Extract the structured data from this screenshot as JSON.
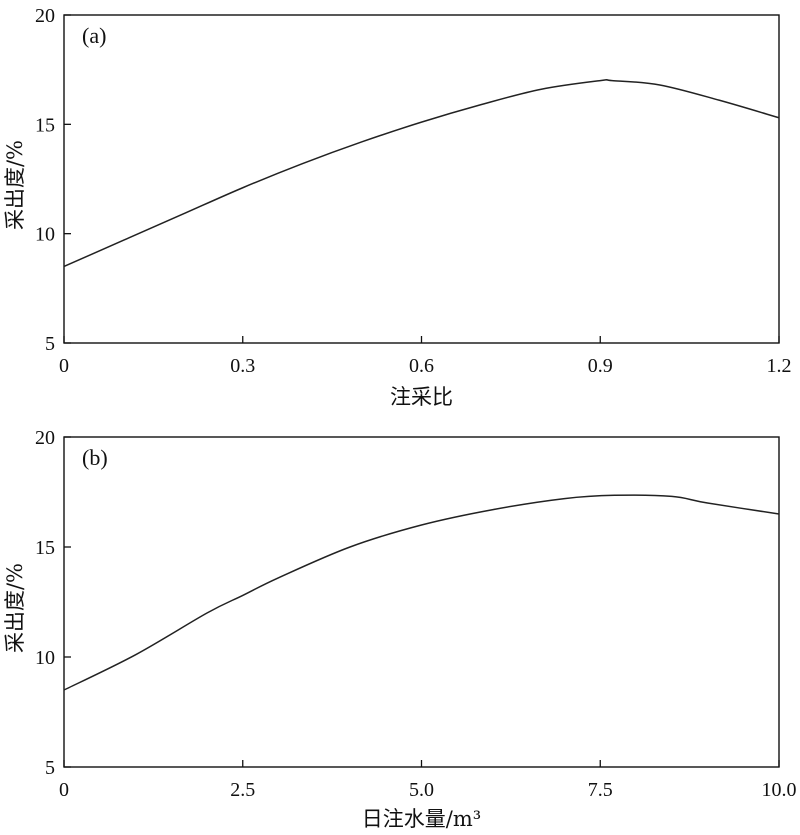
{
  "chart_data": [
    {
      "type": "line",
      "panel_label": "(a)",
      "xlabel": "注采比",
      "ylabel": "采出度/%",
      "xlim": [
        0,
        1.2
      ],
      "ylim": [
        5,
        20
      ],
      "xticks": [
        0,
        0.3,
        0.6,
        0.9,
        1.2
      ],
      "xtick_labels": [
        "0",
        "0.3",
        "0.6",
        "0.9",
        "1.2"
      ],
      "yticks": [
        5,
        10,
        15,
        20
      ],
      "ytick_labels": [
        "5",
        "10",
        "15",
        "20"
      ],
      "grid": false,
      "series": [
        {
          "x": [
            0,
            0.1,
            0.2,
            0.3,
            0.4,
            0.5,
            0.6,
            0.7,
            0.8,
            0.9,
            0.92,
            1.0,
            1.1,
            1.2
          ],
          "values": [
            8.5,
            9.7,
            10.9,
            12.1,
            13.2,
            14.2,
            15.1,
            15.9,
            16.6,
            17.0,
            17.0,
            16.8,
            16.1,
            15.3
          ]
        }
      ]
    },
    {
      "type": "line",
      "panel_label": "(b)",
      "xlabel": "日注水量/m³",
      "ylabel": "采出度/%",
      "xlim": [
        0,
        10
      ],
      "ylim": [
        5,
        20
      ],
      "xticks": [
        0,
        2.5,
        5.0,
        7.5,
        10.0
      ],
      "xtick_labels": [
        "0",
        "2.5",
        "5.0",
        "7.5",
        "10.0"
      ],
      "yticks": [
        5,
        10,
        15,
        20
      ],
      "ytick_labels": [
        "5",
        "10",
        "15",
        "20"
      ],
      "grid": false,
      "series": [
        {
          "x": [
            0,
            1,
            2,
            2.5,
            3,
            4,
            5,
            6,
            7,
            7.7,
            8.5,
            9,
            10
          ],
          "values": [
            8.5,
            10.1,
            12.0,
            12.8,
            13.6,
            15.0,
            16.0,
            16.7,
            17.2,
            17.35,
            17.3,
            17.0,
            16.5
          ]
        }
      ]
    }
  ]
}
